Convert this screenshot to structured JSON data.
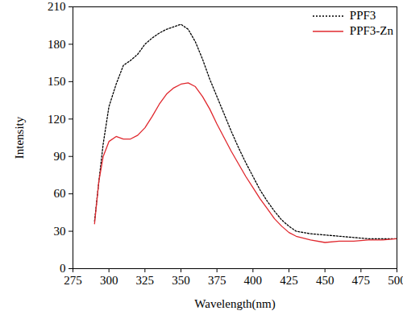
{
  "chart_data": {
    "type": "line",
    "x_label": "Wavelength(nm)",
    "y_label": "Intensity",
    "x": [
      290,
      293,
      296,
      300,
      305,
      310,
      315,
      320,
      325,
      330,
      335,
      340,
      345,
      350,
      355,
      360,
      365,
      370,
      375,
      380,
      385,
      390,
      395,
      400,
      405,
      410,
      415,
      420,
      425,
      430,
      440,
      450,
      460,
      470,
      480,
      490,
      500
    ],
    "series": [
      {
        "name": "PPF3",
        "color": "#000000",
        "line_style": "dotted",
        "marker": "none",
        "values": [
          38,
          70,
          100,
          130,
          148,
          163,
          167,
          172,
          180,
          185,
          189,
          192,
          194,
          196,
          192,
          182,
          168,
          152,
          138,
          124,
          110,
          97,
          85,
          74,
          63,
          54,
          46,
          39,
          34,
          30,
          28,
          27,
          26,
          25,
          24,
          24,
          24
        ]
      },
      {
        "name": "PPF3-Zn",
        "color": "#e0282e",
        "line_style": "solid",
        "marker": "none",
        "values": [
          36,
          70,
          90,
          102,
          106,
          104,
          104,
          107,
          113,
          122,
          132,
          140,
          145,
          148,
          149,
          146,
          138,
          128,
          116,
          105,
          94,
          84,
          74,
          65,
          56,
          48,
          40,
          34,
          29,
          26,
          23,
          21,
          22,
          22,
          23,
          23,
          24
        ]
      }
    ],
    "xlim": [
      275,
      500
    ],
    "xticks": [
      275,
      300,
      325,
      350,
      375,
      400,
      425,
      450,
      475,
      500
    ],
    "ylim": [
      0,
      210
    ],
    "yticks": [
      0,
      30,
      60,
      90,
      120,
      150,
      180,
      210
    ],
    "grid": false,
    "legend": "upper right"
  }
}
